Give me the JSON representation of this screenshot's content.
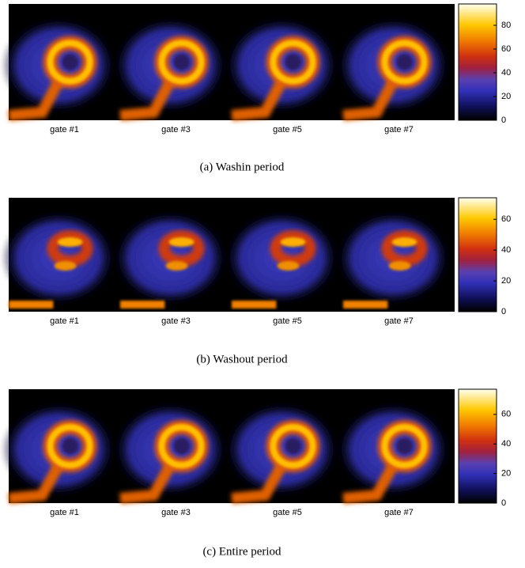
{
  "panels": [
    {
      "caption": "(a) Washin period",
      "gates": [
        "gate #1",
        "gate #3",
        "gate #5",
        "gate #7"
      ],
      "colorbar": {
        "lim": [
          0,
          98
        ],
        "ticks": [
          0,
          20,
          40,
          60,
          80
        ]
      }
    },
    {
      "caption": "(b) Washout period",
      "gates": [
        "gate #1",
        "gate #3",
        "gate #5",
        "gate #7"
      ],
      "colorbar": {
        "lim": [
          0,
          74
        ],
        "ticks": [
          0,
          20,
          40,
          60
        ]
      }
    },
    {
      "caption": "(c) Entire period",
      "gates": [
        "gate #1",
        "gate #3",
        "gate #5",
        "gate #7"
      ],
      "colorbar": {
        "lim": [
          0,
          77
        ],
        "ticks": [
          0,
          20,
          40,
          60
        ]
      }
    }
  ]
}
